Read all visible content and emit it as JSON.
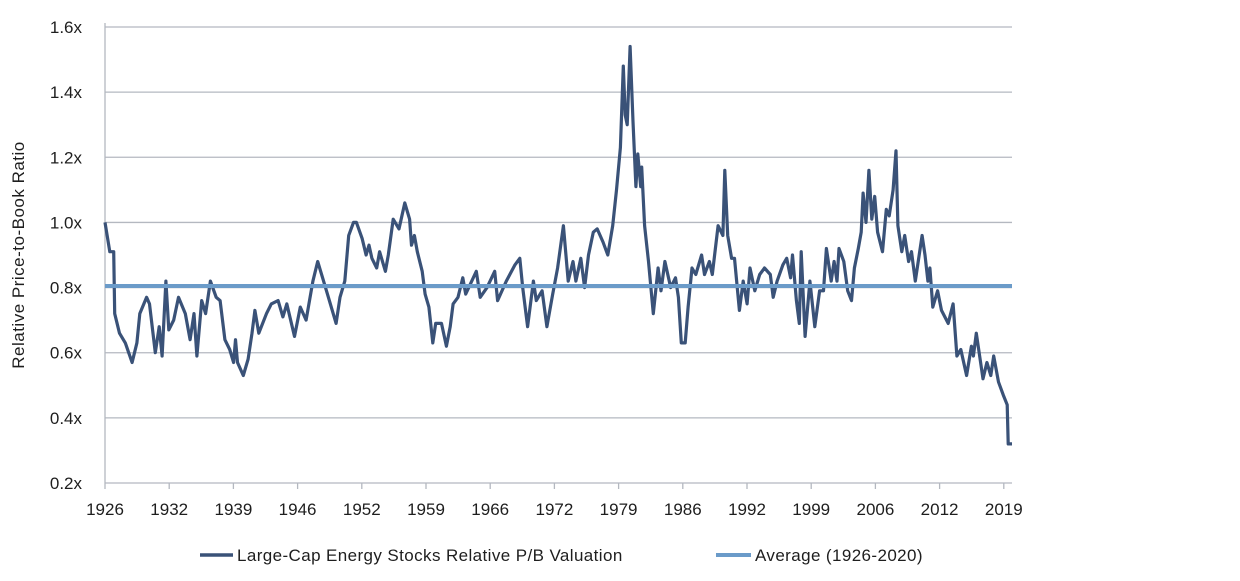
{
  "chart_data": {
    "type": "line",
    "title": "",
    "xlabel": "",
    "ylabel": "Relative Price-to-Book Ratio",
    "ylim": [
      0.2,
      1.6
    ],
    "xlim": [
      1926,
      2020
    ],
    "yticks": [
      "0.2x",
      "0.4x",
      "0.6x",
      "0.8x",
      "1.0x",
      "1.2x",
      "1.4x",
      "1.6x"
    ],
    "ytick_values": [
      0.2,
      0.4,
      0.6,
      0.8,
      1.0,
      1.2,
      1.4,
      1.6
    ],
    "xticks": [
      "1926",
      "1932",
      "1939",
      "1946",
      "1952",
      "1959",
      "1966",
      "1972",
      "1979",
      "1986",
      "1992",
      "1999",
      "2006",
      "2012",
      "2019"
    ],
    "grid": true,
    "legend_position": "bottom",
    "colors": {
      "series": "#3a5278",
      "average": "#6b9bc9",
      "grid": "#b4b8c0"
    },
    "series": [
      {
        "name": "Large-Cap Energy Stocks Relative P/B Valuation",
        "x": [
          1926.0,
          1926.5,
          1926.9,
          1927.0,
          1927.5,
          1928.1,
          1928.8,
          1929.3,
          1929.6,
          1930.3,
          1930.6,
          1931.2,
          1931.6,
          1931.9,
          1932.3,
          1932.6,
          1933.1,
          1933.6,
          1934.3,
          1934.8,
          1935.2,
          1935.5,
          1936.0,
          1936.4,
          1936.9,
          1937.5,
          1937.9,
          1938.4,
          1938.9,
          1939.3,
          1939.5,
          1939.7,
          1940.3,
          1940.8,
          1941.2,
          1941.5,
          1941.9,
          1942.7,
          1943.2,
          1943.9,
          1944.4,
          1944.8,
          1945.6,
          1946.2,
          1946.8,
          1947.5,
          1948.0,
          1948.5,
          1949.1,
          1949.9,
          1950.3,
          1950.8,
          1951.2,
          1951.7,
          1952.0,
          1952.6,
          1953.0,
          1953.3,
          1953.6,
          1954.1,
          1954.4,
          1955.0,
          1955.3,
          1955.8,
          1956.4,
          1957.0,
          1957.5,
          1957.7,
          1958.0,
          1958.3,
          1958.8,
          1959.1,
          1959.5,
          1959.9,
          1960.2,
          1960.8,
          1961.3,
          1961.7,
          1962.0,
          1962.5,
          1963.0,
          1963.3,
          1964.4,
          1964.8,
          1965.5,
          1966.3,
          1966.6,
          1967.5,
          1968.4,
          1968.9,
          1969.2,
          1969.7,
          1970.3,
          1970.6,
          1971.2,
          1971.7,
          1972.3,
          1972.8,
          1973.4,
          1973.9,
          1974.4,
          1974.7,
          1975.2,
          1975.6,
          1976.0,
          1976.5,
          1976.9,
          1977.5,
          1978.0,
          1978.5,
          1978.9,
          1979.3,
          1979.6,
          1979.8,
          1980.0,
          1980.3,
          1980.6,
          1980.9,
          1981.1,
          1981.4,
          1981.5,
          1981.8,
          1982.2,
          1982.7,
          1983.2,
          1983.5,
          1983.9,
          1984.5,
          1985.0,
          1985.3,
          1985.6,
          1986.0,
          1986.3,
          1986.7,
          1987.1,
          1987.7,
          1988.0,
          1988.5,
          1988.8,
          1989.4,
          1989.9,
          1990.1,
          1990.4,
          1990.8,
          1991.1,
          1991.6,
          1992.0,
          1992.4,
          1992.7,
          1993.2,
          1993.7,
          1994.2,
          1994.8,
          1995.1,
          1995.5,
          1996.1,
          1996.5,
          1996.9,
          1997.1,
          1997.5,
          1997.8,
          1998.0,
          1998.4,
          1998.9,
          1999.4,
          1999.9,
          2000.3,
          2000.6,
          2001.1,
          2001.4,
          2001.7,
          2001.9,
          2002.4,
          2002.8,
          2003.2,
          2003.5,
          2003.9,
          2004.2,
          2004.4,
          2004.7,
          2005.0,
          2005.3,
          2005.6,
          2005.9,
          2006.4,
          2006.8,
          2007.1,
          2007.5,
          2007.8,
          2008.0,
          2008.4,
          2008.7,
          2009.1,
          2009.4,
          2009.8,
          2010.5,
          2010.8,
          2011.1,
          2011.3,
          2011.6,
          2012.1,
          2012.5,
          2013.2,
          2013.7,
          2014.1,
          2014.5,
          2015.1,
          2015.6,
          2015.8,
          2016.1,
          2016.8,
          2017.2,
          2017.6,
          2017.9,
          2018.4,
          2018.9,
          2019.3,
          2019.4,
          2019.8
        ],
        "values": [
          1.0,
          0.91,
          0.91,
          0.72,
          0.66,
          0.63,
          0.57,
          0.63,
          0.72,
          0.77,
          0.75,
          0.6,
          0.68,
          0.59,
          0.82,
          0.67,
          0.7,
          0.77,
          0.72,
          0.64,
          0.72,
          0.59,
          0.76,
          0.72,
          0.82,
          0.77,
          0.76,
          0.64,
          0.61,
          0.57,
          0.64,
          0.57,
          0.53,
          0.58,
          0.66,
          0.73,
          0.66,
          0.72,
          0.75,
          0.76,
          0.71,
          0.75,
          0.65,
          0.74,
          0.7,
          0.82,
          0.88,
          0.83,
          0.77,
          0.69,
          0.77,
          0.82,
          0.96,
          1.0,
          1.0,
          0.95,
          0.9,
          0.93,
          0.89,
          0.86,
          0.91,
          0.85,
          0.9,
          1.01,
          0.98,
          1.06,
          1.01,
          0.93,
          0.96,
          0.91,
          0.85,
          0.78,
          0.74,
          0.63,
          0.69,
          0.69,
          0.62,
          0.68,
          0.75,
          0.77,
          0.83,
          0.78,
          0.85,
          0.77,
          0.8,
          0.85,
          0.76,
          0.82,
          0.87,
          0.89,
          0.8,
          0.68,
          0.82,
          0.76,
          0.79,
          0.68,
          0.78,
          0.86,
          0.99,
          0.82,
          0.88,
          0.82,
          0.89,
          0.8,
          0.9,
          0.97,
          0.98,
          0.94,
          0.9,
          0.99,
          1.1,
          1.23,
          1.48,
          1.33,
          1.3,
          1.54,
          1.31,
          1.11,
          1.21,
          1.11,
          1.17,
          0.99,
          0.88,
          0.72,
          0.86,
          0.79,
          0.88,
          0.8,
          0.83,
          0.77,
          0.63,
          0.63,
          0.74,
          0.86,
          0.84,
          0.9,
          0.84,
          0.88,
          0.84,
          0.99,
          0.96,
          1.16,
          0.96,
          0.89,
          0.89,
          0.73,
          0.82,
          0.75,
          0.86,
          0.79,
          0.84,
          0.86,
          0.84,
          0.77,
          0.82,
          0.87,
          0.89,
          0.83,
          0.9,
          0.76,
          0.69,
          0.91,
          0.65,
          0.82,
          0.68,
          0.79,
          0.79,
          0.92,
          0.82,
          0.88,
          0.82,
          0.92,
          0.88,
          0.79,
          0.76,
          0.86,
          0.92,
          0.97,
          1.09,
          1.0,
          1.16,
          1.01,
          1.08,
          0.97,
          0.91,
          1.04,
          1.02,
          1.1,
          1.22,
          0.99,
          0.91,
          0.96,
          0.88,
          0.91,
          0.82,
          0.96,
          0.9,
          0.82,
          0.86,
          0.74,
          0.79,
          0.73,
          0.69,
          0.75,
          0.59,
          0.61,
          0.53,
          0.62,
          0.59,
          0.66,
          0.52,
          0.57,
          0.53,
          0.59,
          0.51,
          0.47,
          0.44,
          0.32,
          0.32
        ]
      },
      {
        "name": "Average (1926-2020)",
        "value": 0.805
      }
    ]
  }
}
